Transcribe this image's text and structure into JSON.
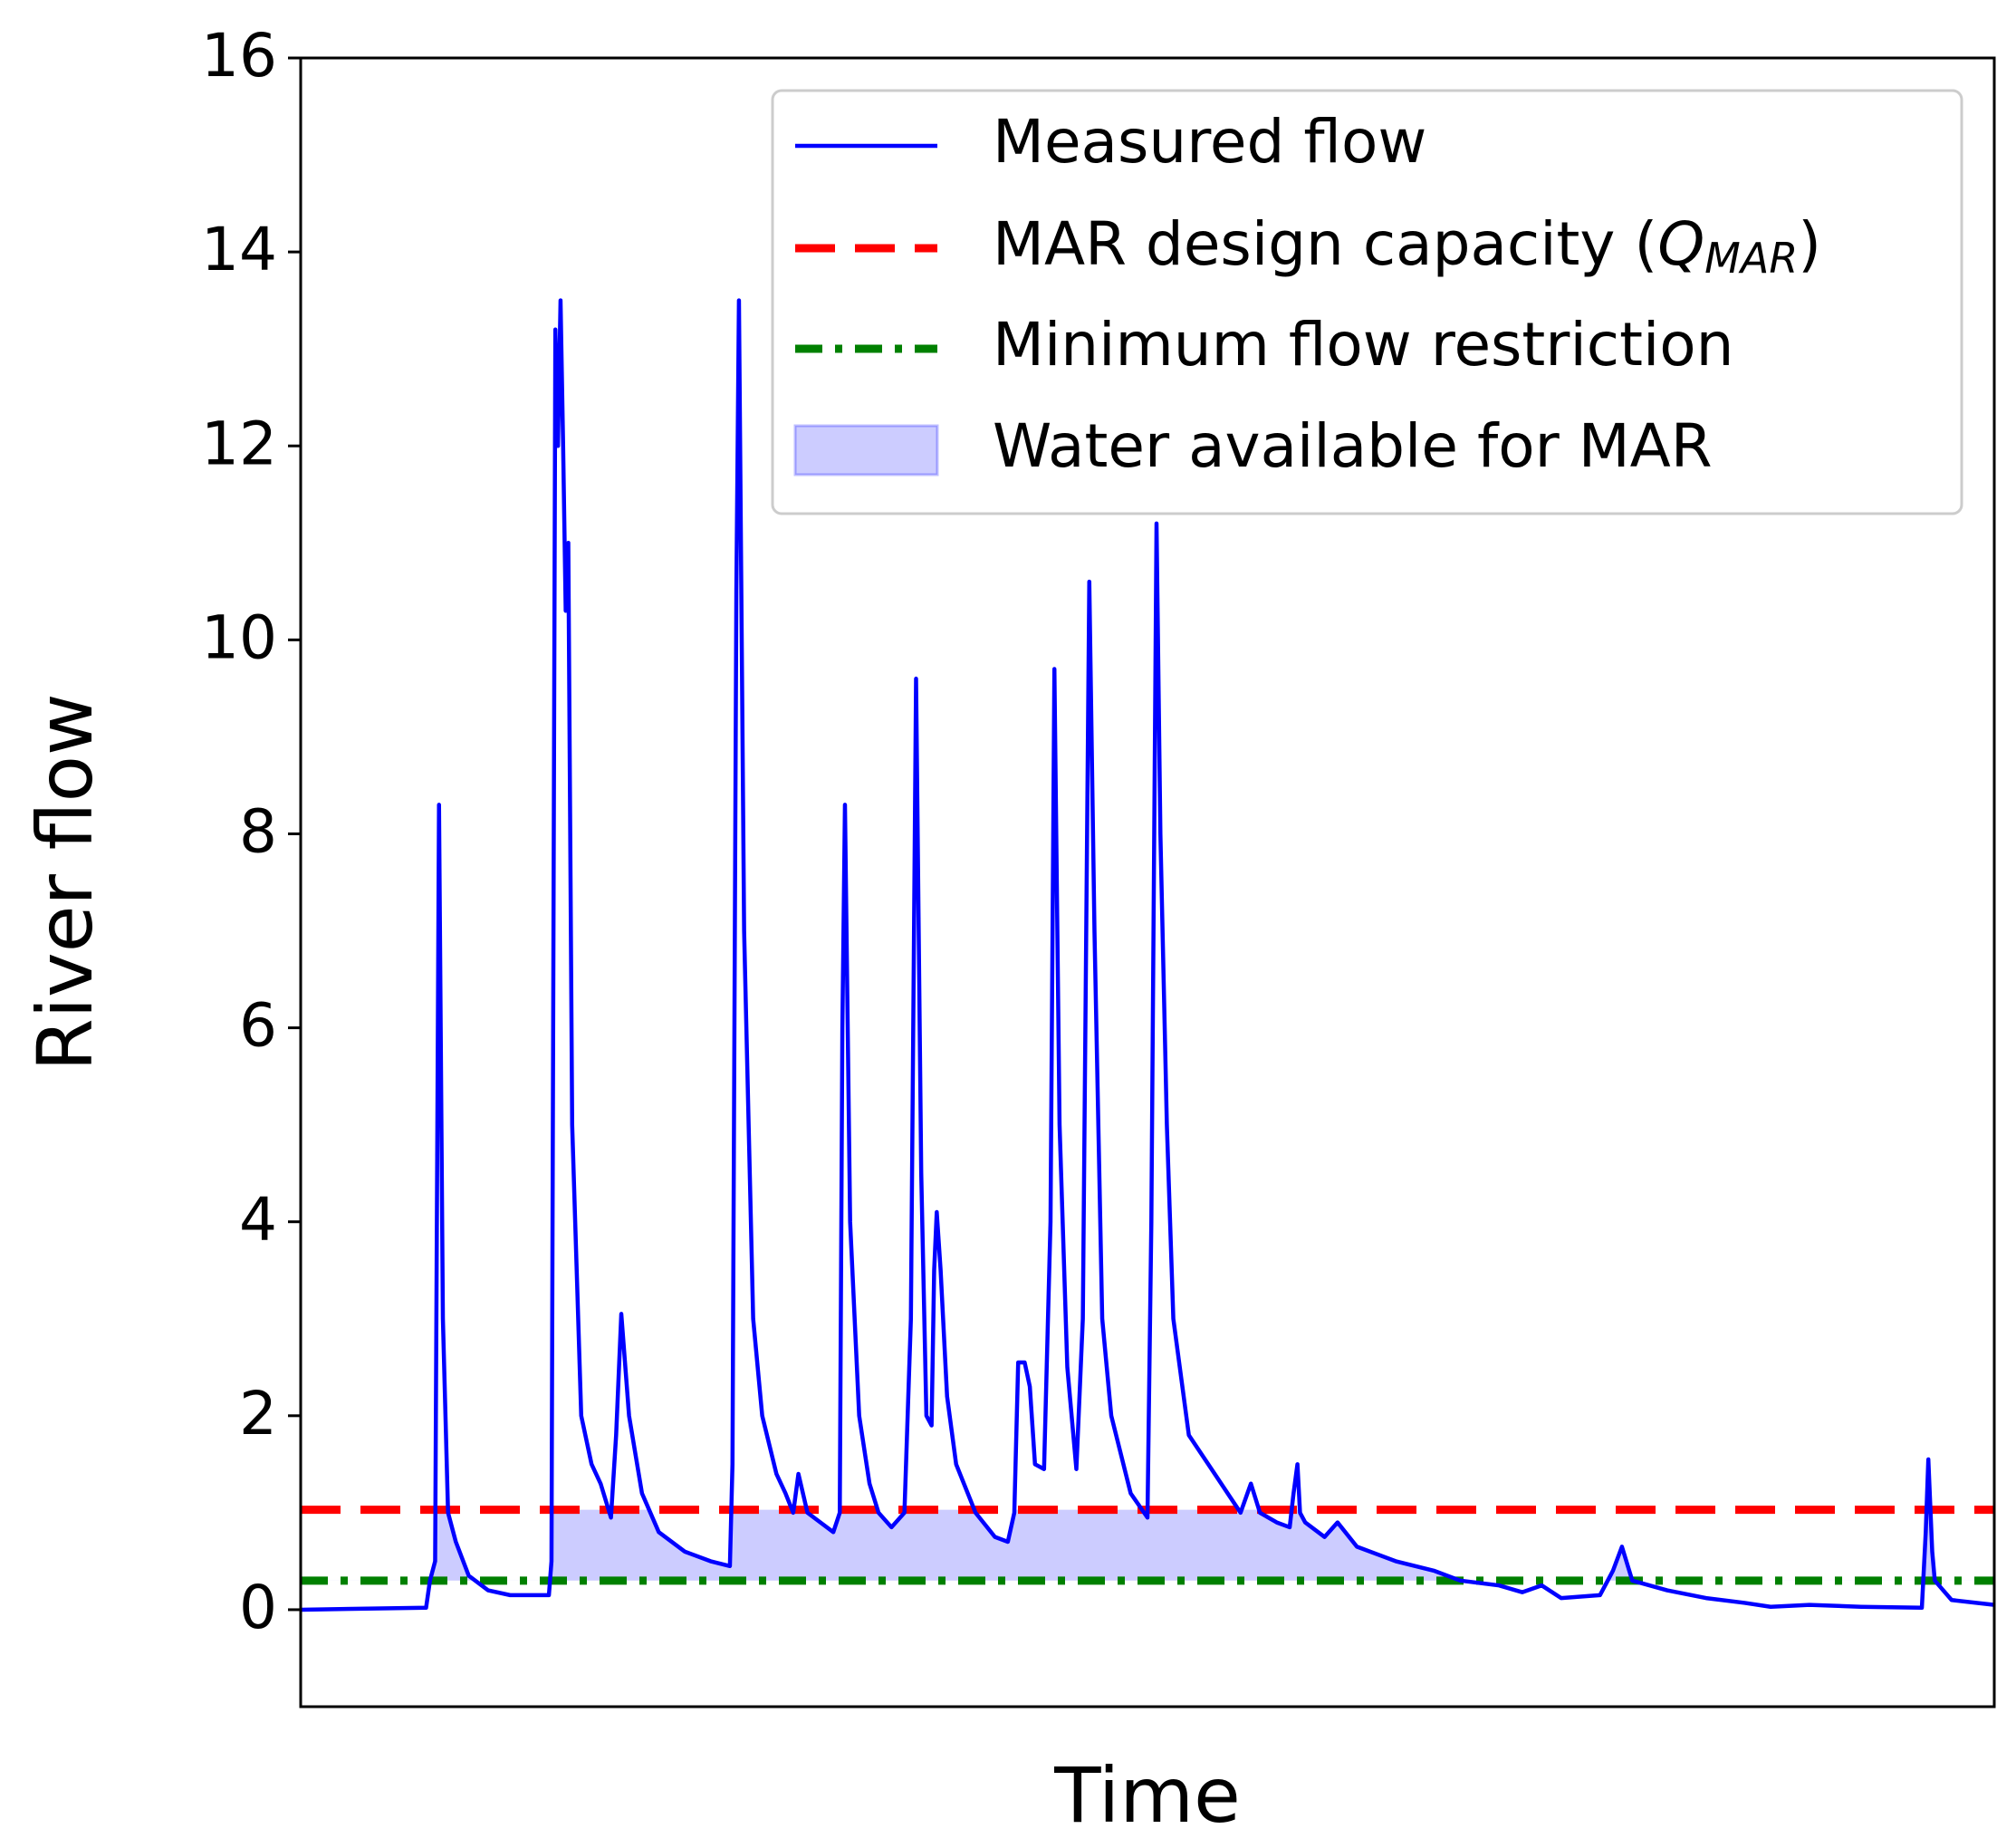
{
  "chart_data": {
    "type": "line",
    "xlabel": "Time",
    "ylabel": "River flow",
    "xlim": [
      0,
      1310
    ],
    "ylim": [
      -1,
      16
    ],
    "yticks": [
      0,
      2,
      4,
      6,
      8,
      10,
      12,
      14,
      16
    ],
    "legend": "upper right",
    "series": [
      {
        "name": "Measured flow",
        "color": "#0000ff",
        "x": [
          0,
          97,
          100,
          104,
          107,
          110,
          114,
          120,
          130,
          145,
          162,
          192,
          194,
          197,
          199,
          201,
          203,
          205,
          207,
          210,
          217,
          225,
          232,
          240,
          244,
          248,
          254,
          264,
          277,
          297,
          317,
          332,
          334,
          337,
          339,
          343,
          350,
          357,
          368,
          375,
          381,
          385,
          392,
          412,
          417,
          419,
          421,
          425,
          432,
          440,
          447,
          457,
          467,
          472,
          476,
          480,
          484,
          488,
          490,
          492,
          495,
          500,
          507,
          522,
          537,
          547,
          552,
          555,
          560,
          564,
          568,
          575,
          580,
          583,
          587,
          593,
          600,
          605,
          610,
          614,
          620,
          627,
          642,
          655,
          658,
          662,
          665,
          670,
          675,
          687,
          707,
          727,
          735,
          742,
          755,
          765,
          768,
          771,
          773,
          777,
          792,
          802,
          817,
          847,
          877,
          897,
          927,
          945,
          960,
          975,
          1005,
          1015,
          1022,
          1030,
          1057,
          1087,
          1117,
          1137,
          1167,
          1207,
          1254,
          1257,
          1259,
          1262,
          1264,
          1277,
          1310
        ],
        "values": [
          0,
          0.02,
          0.3,
          0.5,
          8.3,
          3,
          1.0,
          0.7,
          0.35,
          0.2,
          0.15,
          0.15,
          0.5,
          13.2,
          12,
          13.5,
          12,
          10.3,
          11.0,
          5,
          2.0,
          1.5,
          1.3,
          0.95,
          1.8,
          3.05,
          2.0,
          1.2,
          0.8,
          0.6,
          0.5,
          0.45,
          1.5,
          10.5,
          13.5,
          7,
          3,
          2.0,
          1.4,
          1.2,
          1.0,
          1.4,
          1.0,
          0.8,
          1.0,
          6,
          8.3,
          4,
          2.0,
          1.3,
          1.0,
          0.85,
          1.0,
          3,
          9.6,
          4.5,
          2.0,
          1.9,
          3.5,
          4.1,
          3.5,
          2.2,
          1.5,
          1.0,
          0.75,
          0.7,
          1.0,
          2.55,
          2.55,
          2.3,
          1.5,
          1.45,
          4,
          9.7,
          5,
          2.5,
          1.45,
          3,
          10.6,
          7,
          3,
          2.0,
          1.2,
          0.95,
          4,
          11.2,
          8,
          5,
          3,
          1.8,
          1.4,
          1.0,
          1.3,
          1.0,
          0.9,
          0.85,
          1.2,
          1.5,
          1.0,
          0.9,
          0.75,
          0.9,
          0.65,
          0.5,
          0.4,
          0.3,
          0.25,
          0.18,
          0.25,
          0.12,
          0.15,
          0.4,
          0.65,
          0.3,
          0.2,
          0.12,
          0.07,
          0.03,
          0.05,
          0.03,
          0.02,
          0.8,
          1.55,
          0.6,
          0.3,
          0.1,
          0.05
        ]
      }
    ],
    "hlines": [
      {
        "name": [
          "MAR design capacity (",
          "Q",
          "MAR",
          ")"
        ],
        "color": "#ff0000",
        "value": 1.03,
        "dash": "dashed"
      },
      {
        "name": "Minimum flow restriction",
        "color": "#008000",
        "value": 0.3,
        "dash": "dashdot"
      }
    ],
    "fill": {
      "name": "Water available for MAR",
      "color": "#0000ff"
    }
  }
}
